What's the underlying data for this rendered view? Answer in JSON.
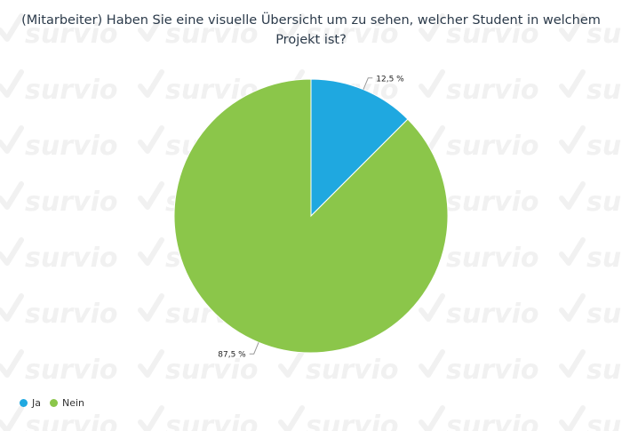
{
  "watermark": {
    "text": "survio",
    "color": "#f1f1f1"
  },
  "chart_data": {
    "type": "pie",
    "title": "(Mitarbeiter) Haben Sie eine visuelle Übersicht um zu sehen, welcher Student in welchem Projekt ist?",
    "categories": [
      "Ja",
      "Nein"
    ],
    "values": [
      12.5,
      87.5
    ],
    "labels": [
      "12,5 %",
      "87,5 %"
    ],
    "colors": [
      "#1fa8e0",
      "#8bc64a"
    ],
    "legend_position": "bottom-left"
  }
}
